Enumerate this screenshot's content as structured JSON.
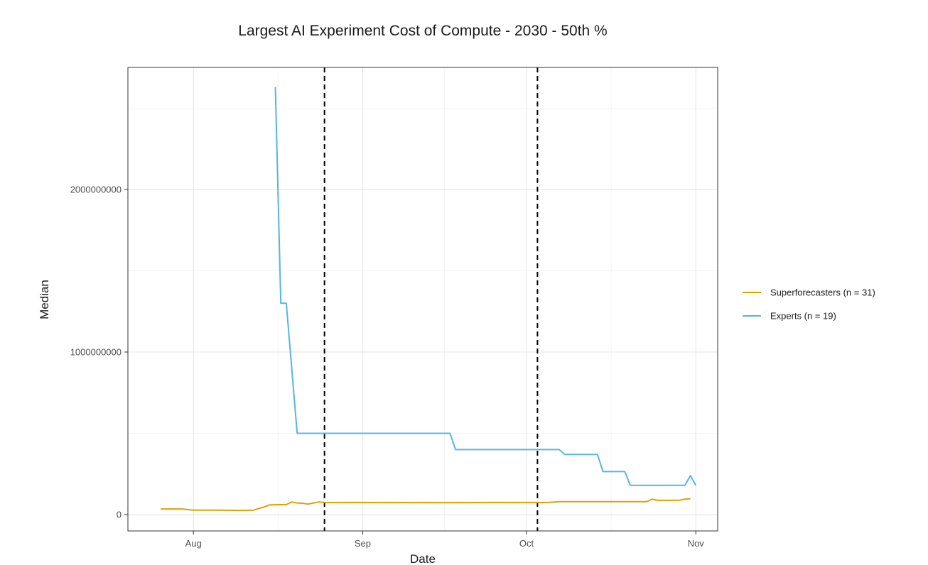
{
  "chart_data": {
    "type": "line",
    "title": "Largest AI Experiment Cost of Compute - 2030 - 50th %",
    "xlabel": "Date",
    "ylabel": "Median",
    "x_ticks": [
      {
        "date": "2022-08-01",
        "label": "Aug"
      },
      {
        "date": "2022-09-01",
        "label": "Sep"
      },
      {
        "date": "2022-10-01",
        "label": "Oct"
      },
      {
        "date": "2022-11-01",
        "label": "Nov"
      }
    ],
    "y_ticks": [
      {
        "value": 0,
        "label": "0"
      },
      {
        "value": 1000000000,
        "label": "1000000000"
      },
      {
        "value": 2000000000,
        "label": "2000000000"
      }
    ],
    "xlim": [
      "2022-07-20",
      "2022-11-05"
    ],
    "ylim": [
      -100000000,
      2750000000
    ],
    "grid": true,
    "legend_position": "right",
    "vertical_lines": [
      "2022-08-25",
      "2022-10-03"
    ],
    "series": [
      {
        "name": "Superforecasters (n = 31)",
        "color": "#E69F00",
        "points": [
          [
            "2022-07-26",
            35000000
          ],
          [
            "2022-07-30",
            35000000
          ],
          [
            "2022-08-01",
            28000000
          ],
          [
            "2022-08-05",
            28000000
          ],
          [
            "2022-08-10",
            26000000
          ],
          [
            "2022-08-12",
            28000000
          ],
          [
            "2022-08-14",
            48000000
          ],
          [
            "2022-08-15",
            60000000
          ],
          [
            "2022-08-18",
            62000000
          ],
          [
            "2022-08-19",
            78000000
          ],
          [
            "2022-08-20",
            72000000
          ],
          [
            "2022-08-21",
            70000000
          ],
          [
            "2022-08-22",
            65000000
          ],
          [
            "2022-08-23",
            72000000
          ],
          [
            "2022-08-24",
            78000000
          ],
          [
            "2022-08-25",
            75000000
          ],
          [
            "2022-09-15",
            74000000
          ],
          [
            "2022-10-05",
            75000000
          ],
          [
            "2022-10-07",
            80000000
          ],
          [
            "2022-10-23",
            80000000
          ],
          [
            "2022-10-24",
            95000000
          ],
          [
            "2022-10-25",
            88000000
          ],
          [
            "2022-10-29",
            88000000
          ],
          [
            "2022-10-30",
            96000000
          ],
          [
            "2022-10-31",
            97000000
          ]
        ]
      },
      {
        "name": "Experts (n = 19)",
        "color": "#56B4E9",
        "points": [
          [
            "2022-08-16",
            2630000000
          ],
          [
            "2022-08-17",
            1300000000
          ],
          [
            "2022-08-18",
            1300000000
          ],
          [
            "2022-08-20",
            500000000
          ],
          [
            "2022-09-17",
            500000000
          ],
          [
            "2022-09-18",
            400000000
          ],
          [
            "2022-10-07",
            400000000
          ],
          [
            "2022-10-08",
            370000000
          ],
          [
            "2022-10-14",
            370000000
          ],
          [
            "2022-10-15",
            265000000
          ],
          [
            "2022-10-19",
            265000000
          ],
          [
            "2022-10-20",
            180000000
          ],
          [
            "2022-10-30",
            180000000
          ],
          [
            "2022-10-31",
            240000000
          ],
          [
            "2022-11-01",
            180000000
          ]
        ]
      }
    ]
  }
}
